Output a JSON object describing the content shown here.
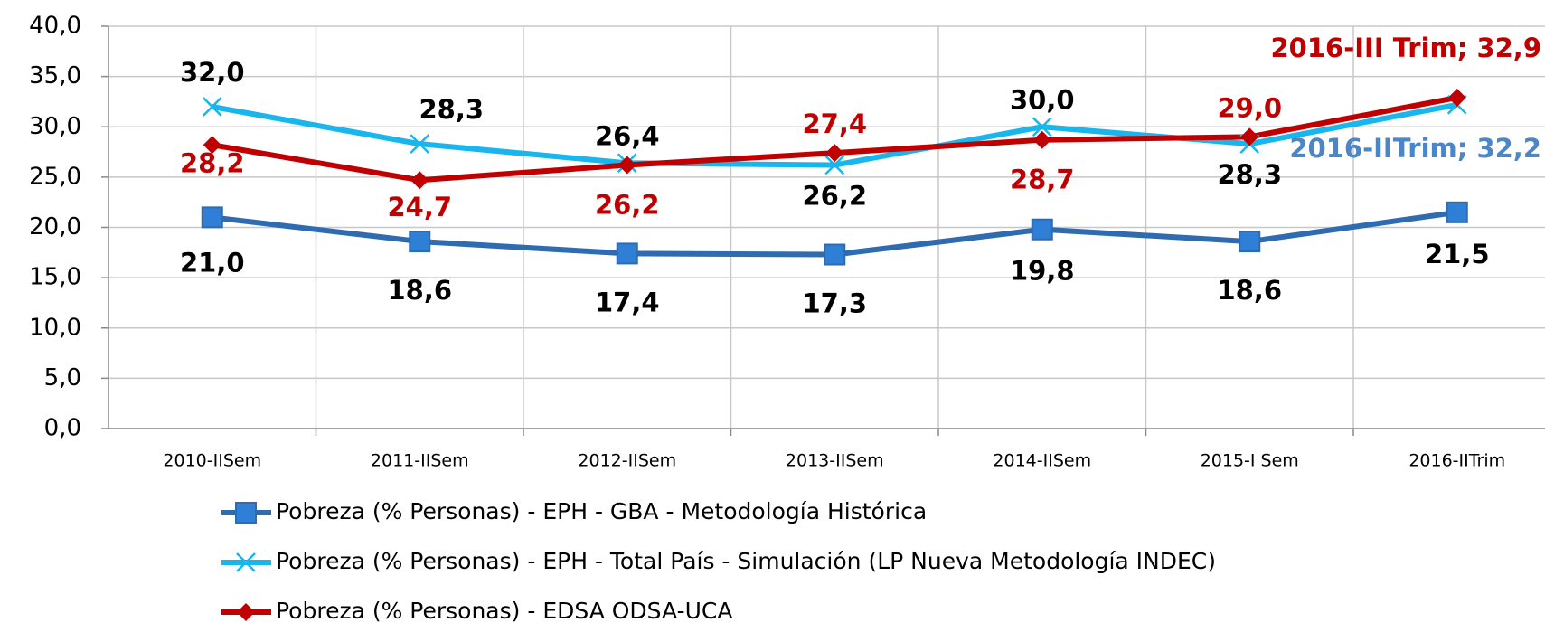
{
  "chart_data": {
    "type": "line",
    "categories": [
      "2010-IISem",
      "2011-IISem",
      "2012-IISem",
      "2013-IISem",
      "2014-IISem",
      "2015-I Sem",
      "2016-IITrim"
    ],
    "ylim": [
      0,
      40
    ],
    "yticks": [
      {
        "value": 0,
        "label": "0,0"
      },
      {
        "value": 5,
        "label": "5,0"
      },
      {
        "value": 10,
        "label": "10,0"
      },
      {
        "value": 15,
        "label": "15,0"
      },
      {
        "value": 20,
        "label": "20,0"
      },
      {
        "value": 25,
        "label": "25,0"
      },
      {
        "value": 30,
        "label": "30,0"
      },
      {
        "value": 35,
        "label": "35,0"
      },
      {
        "value": 40,
        "label": "40,0"
      }
    ],
    "grid": true,
    "series": [
      {
        "name": "Pobreza (% Personas) - EPH - GBA - Metodología Histórica",
        "color": "#2e6bb0",
        "marker": "square",
        "values": [
          21.0,
          18.6,
          17.4,
          17.3,
          19.8,
          18.6,
          21.5
        ],
        "value_labels": [
          "21,0",
          "18,6",
          "17,4",
          "17,3",
          "19,8",
          "18,6",
          "21,5"
        ]
      },
      {
        "name": "Pobreza (% Personas) - EPH - Total País - Simulación (LP Nueva Metodología INDEC)",
        "color": "#19b6ee",
        "marker": "x",
        "values": [
          32.0,
          28.3,
          26.4,
          26.2,
          30.0,
          28.3,
          32.2
        ],
        "value_labels": [
          "32,0",
          "28,3",
          "26,4",
          "26,2",
          "30,0",
          "28,3",
          "2016-IITrim; 32,2"
        ]
      },
      {
        "name": "Pobreza (% Personas) - EDSA ODSA-UCA",
        "color": "#c00000",
        "marker": "diamond",
        "values": [
          28.2,
          24.7,
          26.2,
          27.4,
          28.7,
          29.0,
          32.9
        ],
        "value_labels": [
          "28,2",
          "24,7",
          "26,2",
          "27,4",
          "28,7",
          "29,0",
          "2016-III Trim; 32,9"
        ]
      }
    ]
  }
}
